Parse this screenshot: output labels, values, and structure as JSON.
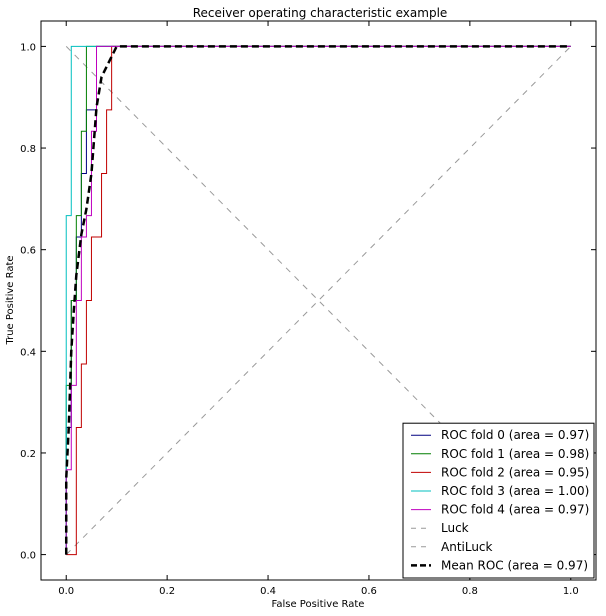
{
  "chart_data": {
    "type": "line",
    "title": "Receiver operating characteristic example",
    "xlabel": "False Positive Rate",
    "ylabel": "True Positive Rate",
    "xlim": [
      -0.05,
      1.05
    ],
    "ylim": [
      -0.05,
      1.05
    ],
    "xticks": [
      0.0,
      0.2,
      0.4,
      0.6,
      0.8,
      1.0
    ],
    "yticks": [
      0.0,
      0.2,
      0.4,
      0.6,
      0.8,
      1.0
    ],
    "xtick_labels": [
      "0.0",
      "0.2",
      "0.4",
      "0.6",
      "0.8",
      "1.0"
    ],
    "ytick_labels": [
      "0.0",
      "0.2",
      "0.4",
      "0.6",
      "0.8",
      "1.0"
    ],
    "grid": false,
    "legend_position": "lower-right",
    "series": [
      {
        "name": "ROC fold 0 (area = 0.97)",
        "color": "#000080",
        "dash": "solid",
        "x": [
          0.0,
          0.0,
          0.01,
          0.01,
          0.02,
          0.02,
          0.03,
          0.03,
          0.04,
          0.04,
          0.06,
          0.06,
          1.0
        ],
        "y": [
          0.0,
          0.25,
          0.25,
          0.5,
          0.5,
          0.625,
          0.625,
          0.75,
          0.75,
          0.875,
          0.875,
          1.0,
          1.0
        ]
      },
      {
        "name": "ROC fold 1 (area = 0.98)",
        "color": "#007F00",
        "dash": "solid",
        "x": [
          0.0,
          0.0,
          0.01,
          0.01,
          0.02,
          0.02,
          0.03,
          0.03,
          0.04,
          0.04,
          1.0
        ],
        "y": [
          0.0,
          0.333,
          0.333,
          0.5,
          0.5,
          0.667,
          0.667,
          0.833,
          0.833,
          1.0,
          1.0
        ]
      },
      {
        "name": "ROC fold 2 (area = 0.95)",
        "color": "#C00000",
        "dash": "solid",
        "x": [
          0.0,
          0.02,
          0.02,
          0.03,
          0.03,
          0.04,
          0.04,
          0.05,
          0.05,
          0.07,
          0.07,
          0.08,
          0.08,
          0.09,
          0.09,
          1.0
        ],
        "y": [
          0.0,
          0.0,
          0.25,
          0.25,
          0.375,
          0.375,
          0.5,
          0.5,
          0.625,
          0.625,
          0.75,
          0.75,
          0.875,
          0.875,
          1.0,
          1.0
        ]
      },
      {
        "name": "ROC fold 3 (area = 1.00)",
        "color": "#00BFBF",
        "dash": "solid",
        "x": [
          0.0,
          0.0,
          0.01,
          0.01,
          1.0
        ],
        "y": [
          0.0,
          0.667,
          0.667,
          1.0,
          1.0
        ]
      },
      {
        "name": "ROC fold 4 (area = 0.97)",
        "color": "#BF00BF",
        "dash": "solid",
        "x": [
          0.0,
          0.0,
          0.01,
          0.01,
          0.02,
          0.02,
          0.03,
          0.03,
          0.04,
          0.04,
          0.05,
          0.05,
          0.06,
          0.06,
          1.0
        ],
        "y": [
          0.0,
          0.167,
          0.167,
          0.333,
          0.333,
          0.5,
          0.5,
          0.625,
          0.625,
          0.667,
          0.667,
          0.833,
          0.833,
          1.0,
          1.0
        ]
      },
      {
        "name": "Luck",
        "color": "#999999",
        "dash": "dashed",
        "x": [
          0.0,
          1.0
        ],
        "y": [
          0.0,
          1.0
        ]
      },
      {
        "name": "AntiLuck",
        "color": "#999999",
        "dash": "dashed",
        "x": [
          0.0,
          1.0
        ],
        "y": [
          1.0,
          0.0
        ]
      },
      {
        "name": "Mean ROC (area = 0.97)",
        "color": "#000000",
        "dash": "bold-dashed",
        "x": [
          0.0,
          0.0,
          0.005,
          0.01,
          0.015,
          0.02,
          0.03,
          0.04,
          0.05,
          0.06,
          0.07,
          0.08,
          0.09,
          0.1,
          0.2,
          0.4,
          0.6,
          0.8,
          1.0
        ],
        "y": [
          0.0,
          0.15,
          0.25,
          0.4,
          0.48,
          0.55,
          0.63,
          0.68,
          0.75,
          0.88,
          0.94,
          0.96,
          0.98,
          1.0,
          1.0,
          1.0,
          1.0,
          1.0,
          1.0
        ]
      }
    ]
  }
}
